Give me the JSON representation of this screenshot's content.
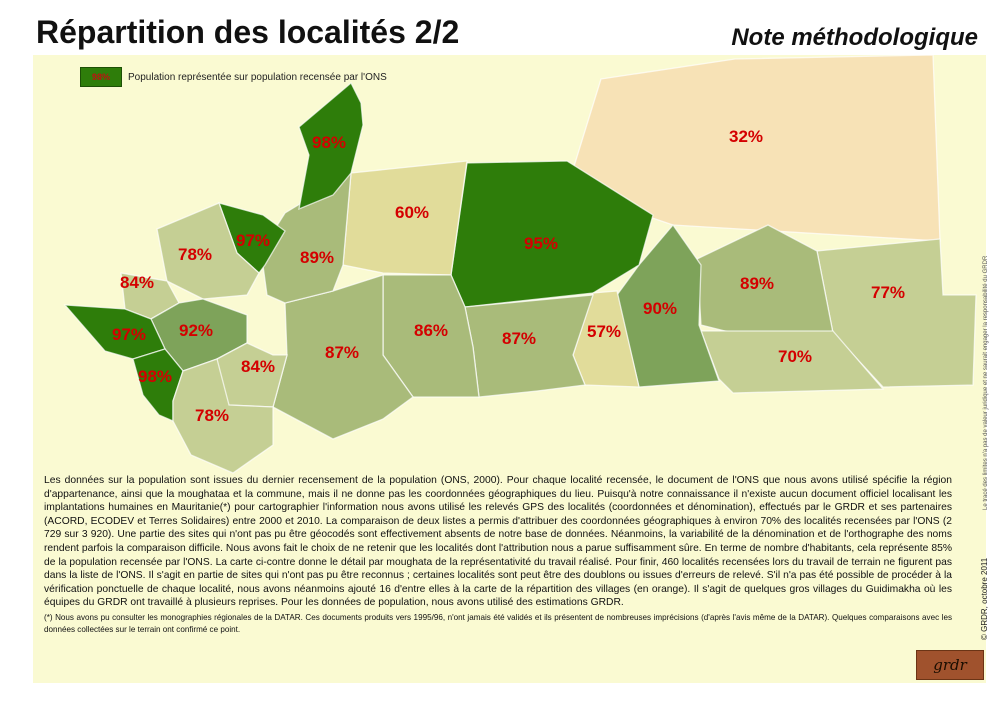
{
  "header": {
    "title": "Répartition des localités 2/2",
    "subtitle": "Note méthodologique"
  },
  "legend": {
    "swatch_text": "98%",
    "label": "Population représentée sur population recensée par l'ONS"
  },
  "colors": {
    "panel_bg": "#fafad2",
    "dark_green": "#2e7d0a",
    "mid_green": "#7ea35a",
    "light_olive": "#a9bb7a",
    "pale_olive": "#c5cf94",
    "cream": "#e1dc9a",
    "peach": "#f7e2b6",
    "label_red": "#d40000"
  },
  "regions": [
    {
      "id": "north-east-32",
      "pct": "32%",
      "fill": "peach"
    },
    {
      "id": "north-98",
      "pct": "98%",
      "fill": "dark_green"
    },
    {
      "id": "north-60",
      "pct": "60%",
      "fill": "cream"
    },
    {
      "id": "north-95",
      "pct": "95%",
      "fill": "dark_green"
    },
    {
      "id": "west-97-top",
      "pct": "97%",
      "fill": "dark_green"
    },
    {
      "id": "west-78",
      "pct": "78%",
      "fill": "pale_olive"
    },
    {
      "id": "center-89",
      "pct": "89%",
      "fill": "light_olive"
    },
    {
      "id": "west-84",
      "pct": "84%",
      "fill": "pale_olive"
    },
    {
      "id": "west-97",
      "pct": "97%",
      "fill": "dark_green"
    },
    {
      "id": "west-92",
      "pct": "92%",
      "fill": "mid_green"
    },
    {
      "id": "south-98",
      "pct": "98%",
      "fill": "dark_green"
    },
    {
      "id": "south-84",
      "pct": "84%",
      "fill": "pale_olive"
    },
    {
      "id": "south-78",
      "pct": "78%",
      "fill": "pale_olive"
    },
    {
      "id": "center-87",
      "pct": "87%",
      "fill": "light_olive"
    },
    {
      "id": "center-86",
      "pct": "86%",
      "fill": "light_olive"
    },
    {
      "id": "center-87b",
      "pct": "87%",
      "fill": "light_olive"
    },
    {
      "id": "center-57",
      "pct": "57%",
      "fill": "cream"
    },
    {
      "id": "east-90",
      "pct": "90%",
      "fill": "mid_green"
    },
    {
      "id": "east-89",
      "pct": "89%",
      "fill": "light_olive"
    },
    {
      "id": "east-77",
      "pct": "77%",
      "fill": "pale_olive"
    },
    {
      "id": "east-70",
      "pct": "70%",
      "fill": "pale_olive"
    }
  ],
  "text": {
    "paragraph": "Les données sur la population sont issues du dernier recensement de la population (ONS, 2000). Pour chaque localité recensée, le document de l'ONS que nous avons utilisé spécifie la région d'appartenance, ainsi que la moughataa et la commune, mais il ne donne pas les coordonnées géographiques du lieu. Puisqu'à notre connaissance il n'existe aucun document officiel localisant les implantations humaines en Mauritanie(*) pour cartographier l'information nous avons utilisé les relevés GPS des localités (coordonnées et dénomination), effectués par le GRDR et ses partenaires (ACORD, ECODEV et Terres Solidaires) entre 2000 et 2010. La comparaison de deux listes a permis d'attribuer des coordonnées géographiques à environ 70% des localités recensées par l'ONS (2 729 sur 3 920). Une partie des sites qui n'ont pas pu être géocodés sont effectivement absents de notre base de données. Néanmoins, la variabilité de la dénomination et de l'orthographe des noms rendent parfois la comparaison difficile. Nous avons fait le choix de ne retenir que les localités dont l'attribution nous a parue suffisamment sûre. En terme de nombre d'habitants, cela représente 85% de la population recensée par l'ONS. La carte ci-contre donne le détail par moughata de la représentativité du travail réalisé. Pour finir, 460 localités recensées lors du travail de terrain ne figurent pas dans la liste de l'ONS. Il s'agit en partie de sites qui n'ont pas pu être reconnus ; certaines localités sont peut être des doublons ou issues d'erreurs de relevé. S'il n'a pas été possible de procéder à la vérification ponctuelle de chaque localité, nous avons néanmoins ajouté 16 d'entre elles à la carte de la répartition des villages (en orange). Il s'agit de quelques gros villages du Guidimakha où les équipes du GRDR ont travaillé à plusieurs reprises. Pour les données de population, nous avons utilisé des estimations GRDR.",
    "footnote": "(*) Nous avons pu consulter les monographies régionales de la DATAR. Ces documents produits vers 1995/96, n'ont jamais été validés et ils présentent de nombreuses imprécisions (d'après l'avis même de la DATAR). Quelques comparaisons avec les données collectées sur le terrain ont confirmé ce point."
  },
  "side": {
    "disclaimer": "Le tracé des limites n'a pas de valeur juridique et ne saurait engager la responsabilité du GRDR",
    "copyright": "© GRDR, octobre 2011"
  },
  "logo": {
    "text": "grdr"
  }
}
